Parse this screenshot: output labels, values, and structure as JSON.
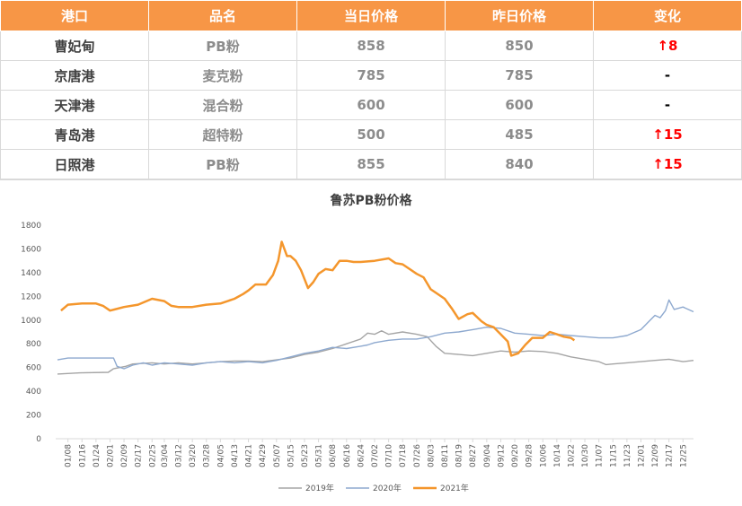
{
  "table": {
    "headers": [
      "港口",
      "品名",
      "当日价格",
      "昨日价格",
      "变化"
    ],
    "rows": [
      {
        "port": "曹妃甸",
        "product": "PB粉",
        "today": "858",
        "yesterday": "850",
        "change": "↑8",
        "direction": "up"
      },
      {
        "port": "京唐港",
        "product": "麦克粉",
        "today": "785",
        "yesterday": "785",
        "change": "-",
        "direction": "flat"
      },
      {
        "port": "天津港",
        "product": "混合粉",
        "today": "600",
        "yesterday": "600",
        "change": "-",
        "direction": "flat"
      },
      {
        "port": "青岛港",
        "product": "超特粉",
        "today": "500",
        "yesterday": "485",
        "change": "↑15",
        "direction": "up"
      },
      {
        "port": "日照港",
        "product": "PB粉",
        "today": "855",
        "yesterday": "840",
        "change": "↑15",
        "direction": "up"
      }
    ]
  },
  "chart_data": {
    "type": "line",
    "title": "鲁苏PB粉价格",
    "ylim": [
      0,
      1800
    ],
    "yticks": [
      0,
      200,
      400,
      600,
      800,
      1000,
      1200,
      1400,
      1600,
      1800
    ],
    "xlim": [
      "01/01",
      "12/31"
    ],
    "xticks": [
      "01/08",
      "01/16",
      "01/24",
      "02/01",
      "02/09",
      "02/17",
      "02/25",
      "03/04",
      "03/12",
      "03/20",
      "03/28",
      "04/05",
      "04/13",
      "04/21",
      "04/29",
      "05/07",
      "05/15",
      "05/23",
      "05/31",
      "06/08",
      "06/16",
      "06/24",
      "07/02",
      "07/10",
      "07/18",
      "07/26",
      "08/03",
      "08/11",
      "08/19",
      "08/27",
      "09/04",
      "09/12",
      "09/20",
      "09/28",
      "10/06",
      "10/14",
      "10/22",
      "10/30",
      "11/07",
      "11/15",
      "11/23",
      "12/01",
      "12/09",
      "12/17",
      "12/25"
    ],
    "legend_position": "bottom",
    "series": [
      {
        "name": "2019年",
        "color": "#A5A5A5",
        "points": [
          [
            "01/02",
            545
          ],
          [
            "01/15",
            555
          ],
          [
            "01/31",
            560
          ],
          [
            "02/03",
            590
          ],
          [
            "02/10",
            610
          ],
          [
            "02/14",
            630
          ],
          [
            "02/25",
            640
          ],
          [
            "03/04",
            630
          ],
          [
            "03/12",
            640
          ],
          [
            "03/20",
            630
          ],
          [
            "03/28",
            640
          ],
          [
            "04/05",
            650
          ],
          [
            "04/13",
            655
          ],
          [
            "04/21",
            655
          ],
          [
            "04/29",
            650
          ],
          [
            "05/07",
            665
          ],
          [
            "05/15",
            680
          ],
          [
            "05/23",
            710
          ],
          [
            "05/31",
            730
          ],
          [
            "06/08",
            760
          ],
          [
            "06/16",
            800
          ],
          [
            "06/24",
            840
          ],
          [
            "06/28",
            890
          ],
          [
            "07/02",
            880
          ],
          [
            "07/06",
            910
          ],
          [
            "07/10",
            880
          ],
          [
            "07/18",
            900
          ],
          [
            "07/26",
            880
          ],
          [
            "08/01",
            860
          ],
          [
            "08/06",
            780
          ],
          [
            "08/11",
            720
          ],
          [
            "08/19",
            710
          ],
          [
            "08/27",
            700
          ],
          [
            "09/04",
            720
          ],
          [
            "09/12",
            740
          ],
          [
            "09/20",
            730
          ],
          [
            "09/28",
            740
          ],
          [
            "10/06",
            735
          ],
          [
            "10/14",
            720
          ],
          [
            "10/22",
            690
          ],
          [
            "10/30",
            670
          ],
          [
            "11/07",
            650
          ],
          [
            "11/11",
            625
          ],
          [
            "11/15",
            630
          ],
          [
            "11/23",
            640
          ],
          [
            "12/01",
            650
          ],
          [
            "12/09",
            660
          ],
          [
            "12/17",
            670
          ],
          [
            "12/25",
            650
          ],
          [
            "12/31",
            660
          ]
        ]
      },
      {
        "name": "2020年",
        "color": "#8EA9CF",
        "points": [
          [
            "01/02",
            665
          ],
          [
            "01/08",
            680
          ],
          [
            "01/16",
            680
          ],
          [
            "01/24",
            680
          ],
          [
            "02/03",
            680
          ],
          [
            "02/05",
            610
          ],
          [
            "02/09",
            590
          ],
          [
            "02/14",
            620
          ],
          [
            "02/20",
            640
          ],
          [
            "02/25",
            620
          ],
          [
            "03/04",
            640
          ],
          [
            "03/12",
            630
          ],
          [
            "03/20",
            620
          ],
          [
            "03/28",
            640
          ],
          [
            "04/05",
            650
          ],
          [
            "04/13",
            640
          ],
          [
            "04/21",
            650
          ],
          [
            "04/29",
            640
          ],
          [
            "05/07",
            660
          ],
          [
            "05/15",
            690
          ],
          [
            "05/23",
            720
          ],
          [
            "05/31",
            740
          ],
          [
            "06/08",
            770
          ],
          [
            "06/16",
            760
          ],
          [
            "06/24",
            780
          ],
          [
            "06/28",
            790
          ],
          [
            "07/02",
            810
          ],
          [
            "07/10",
            830
          ],
          [
            "07/18",
            840
          ],
          [
            "07/26",
            840
          ],
          [
            "08/03",
            860
          ],
          [
            "08/11",
            890
          ],
          [
            "08/19",
            900
          ],
          [
            "08/27",
            920
          ],
          [
            "09/04",
            940
          ],
          [
            "09/12",
            930
          ],
          [
            "09/20",
            890
          ],
          [
            "09/28",
            880
          ],
          [
            "10/06",
            870
          ],
          [
            "10/14",
            880
          ],
          [
            "10/22",
            870
          ],
          [
            "10/30",
            860
          ],
          [
            "11/07",
            850
          ],
          [
            "11/15",
            850
          ],
          [
            "11/23",
            870
          ],
          [
            "12/01",
            920
          ],
          [
            "12/05",
            980
          ],
          [
            "12/09",
            1040
          ],
          [
            "12/12",
            1020
          ],
          [
            "12/15",
            1080
          ],
          [
            "12/17",
            1170
          ],
          [
            "12/20",
            1090
          ],
          [
            "12/25",
            1110
          ],
          [
            "12/31",
            1070
          ]
        ]
      },
      {
        "name": "2021年",
        "color": "#F4962C",
        "points": [
          [
            "01/04",
            1080
          ],
          [
            "01/08",
            1130
          ],
          [
            "01/16",
            1140
          ],
          [
            "01/24",
            1140
          ],
          [
            "01/28",
            1120
          ],
          [
            "02/01",
            1080
          ],
          [
            "02/09",
            1110
          ],
          [
            "02/17",
            1130
          ],
          [
            "02/25",
            1180
          ],
          [
            "03/04",
            1160
          ],
          [
            "03/08",
            1120
          ],
          [
            "03/12",
            1110
          ],
          [
            "03/20",
            1110
          ],
          [
            "03/28",
            1130
          ],
          [
            "04/05",
            1140
          ],
          [
            "04/13",
            1180
          ],
          [
            "04/18",
            1220
          ],
          [
            "04/21",
            1250
          ],
          [
            "04/25",
            1300
          ],
          [
            "05/01",
            1300
          ],
          [
            "05/05",
            1380
          ],
          [
            "05/08",
            1500
          ],
          [
            "05/10",
            1660
          ],
          [
            "05/13",
            1540
          ],
          [
            "05/15",
            1540
          ],
          [
            "05/18",
            1500
          ],
          [
            "05/21",
            1420
          ],
          [
            "05/25",
            1270
          ],
          [
            "05/28",
            1320
          ],
          [
            "05/31",
            1390
          ],
          [
            "06/04",
            1430
          ],
          [
            "06/08",
            1420
          ],
          [
            "06/12",
            1500
          ],
          [
            "06/16",
            1500
          ],
          [
            "06/20",
            1490
          ],
          [
            "06/24",
            1490
          ],
          [
            "07/02",
            1500
          ],
          [
            "07/10",
            1520
          ],
          [
            "07/14",
            1480
          ],
          [
            "07/18",
            1470
          ],
          [
            "07/22",
            1430
          ],
          [
            "07/26",
            1390
          ],
          [
            "07/30",
            1360
          ],
          [
            "08/03",
            1260
          ],
          [
            "08/06",
            1230
          ],
          [
            "08/11",
            1180
          ],
          [
            "08/15",
            1100
          ],
          [
            "08/19",
            1010
          ],
          [
            "08/24",
            1050
          ],
          [
            "08/27",
            1060
          ],
          [
            "09/01",
            990
          ],
          [
            "09/04",
            960
          ],
          [
            "09/08",
            940
          ],
          [
            "09/12",
            880
          ],
          [
            "09/16",
            820
          ],
          [
            "09/18",
            700
          ],
          [
            "09/22",
            720
          ],
          [
            "09/26",
            790
          ],
          [
            "09/30",
            850
          ],
          [
            "10/06",
            850
          ],
          [
            "10/10",
            900
          ],
          [
            "10/14",
            880
          ],
          [
            "10/18",
            860
          ],
          [
            "10/22",
            850
          ],
          [
            "10/24",
            830
          ]
        ]
      }
    ]
  }
}
